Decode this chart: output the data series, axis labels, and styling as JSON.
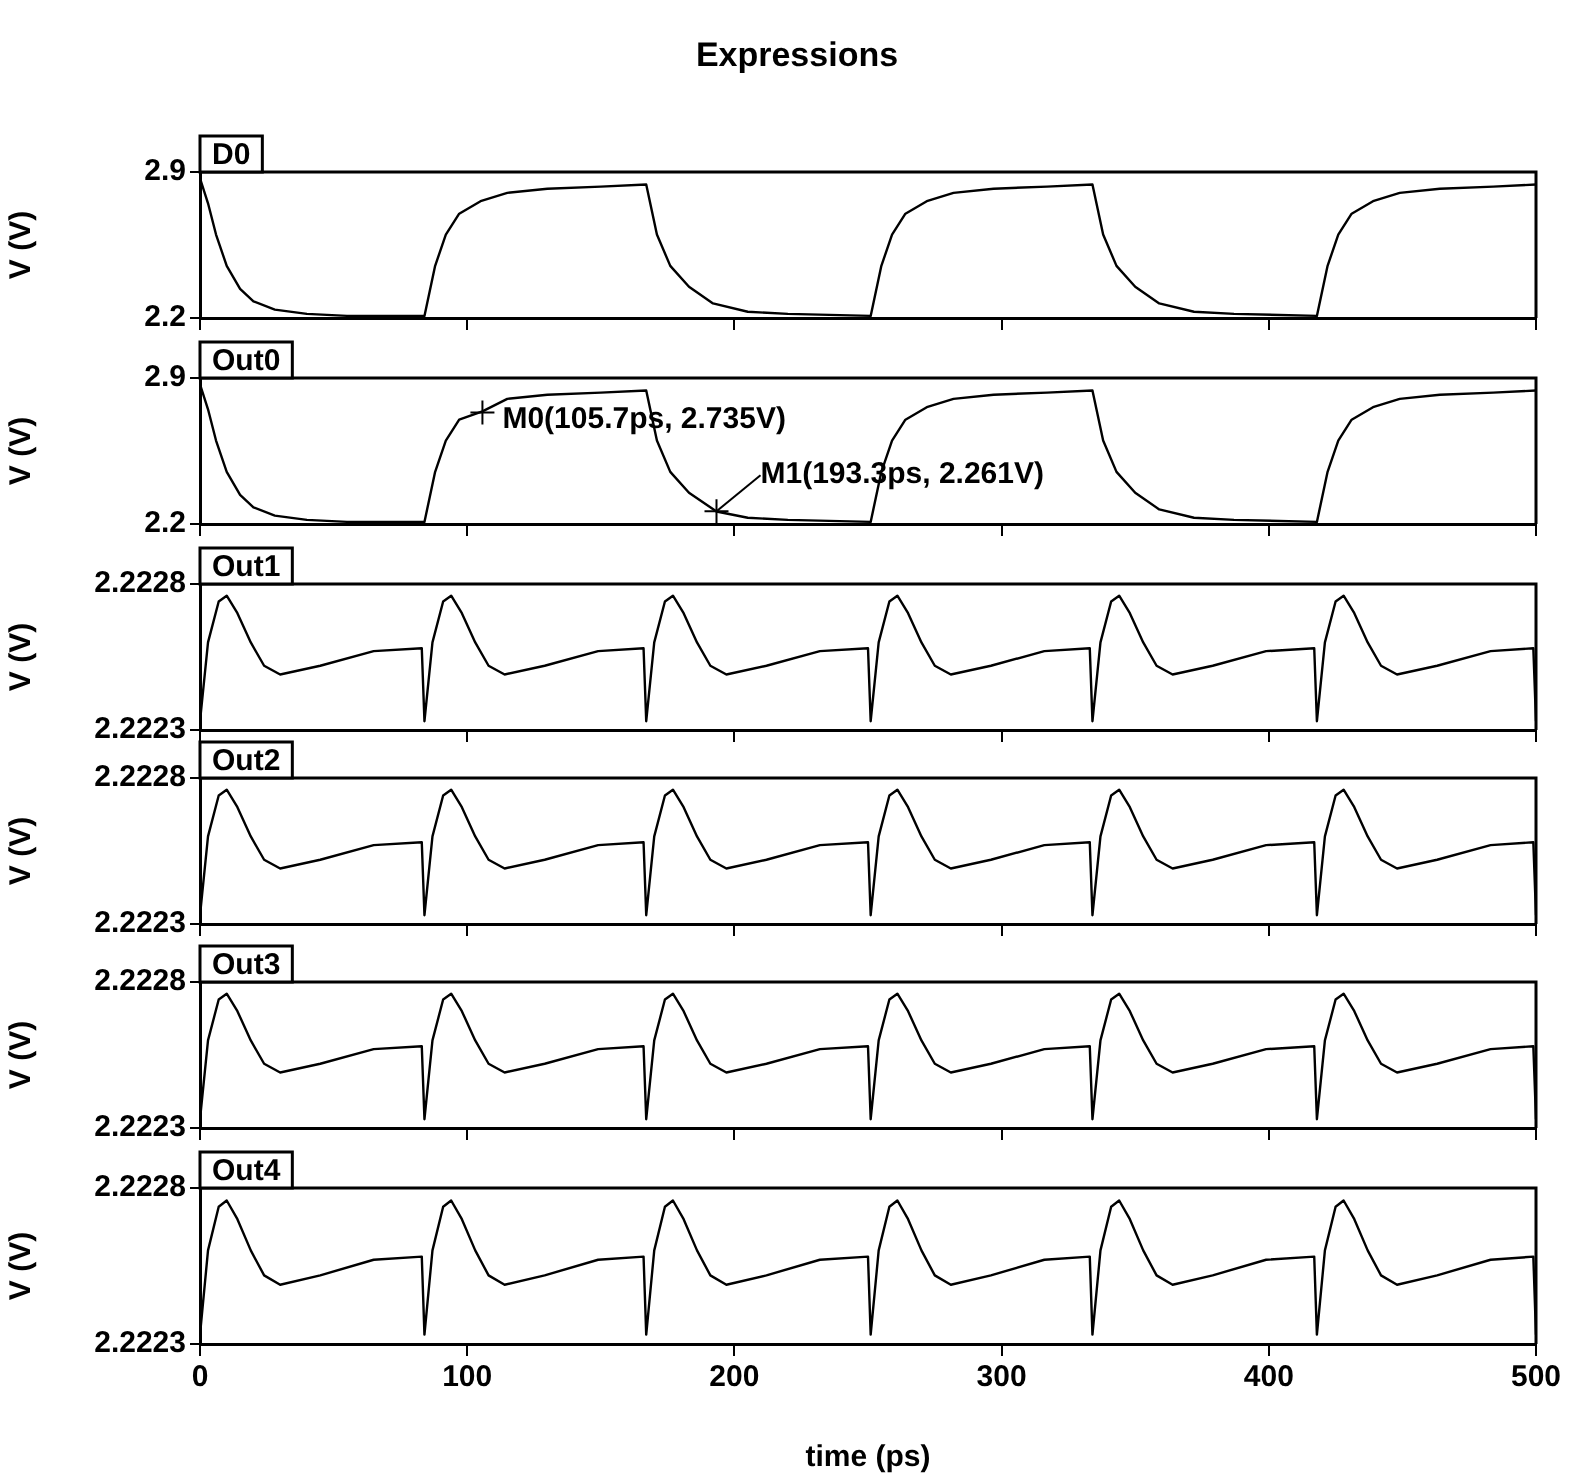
{
  "chart_data": [
    {
      "type": "line",
      "title": "Expressions",
      "ylabel": "V (V)",
      "legend": "top left",
      "tick_labels": "y",
      "xlim": [
        0,
        500
      ],
      "xticks": [
        0,
        100,
        200,
        300,
        400,
        500
      ],
      "ylim": [
        2.2,
        2.9
      ],
      "yticks": [
        2.2,
        2.9
      ],
      "x": [
        0,
        3,
        6,
        10,
        15,
        20,
        28,
        40,
        55,
        84,
        88,
        92,
        97,
        105,
        115,
        130,
        150,
        167,
        171,
        176,
        183,
        192,
        205,
        220,
        251,
        255,
        259,
        264,
        272,
        282,
        297,
        317,
        334,
        338,
        343,
        350,
        359,
        372,
        387,
        418,
        422,
        426,
        431,
        439,
        449,
        464,
        484,
        500
      ],
      "series": [
        {
          "name": "D0",
          "color": "#000000",
          "values": [
            2.87,
            2.75,
            2.6,
            2.45,
            2.34,
            2.28,
            2.24,
            2.22,
            2.21,
            2.21,
            2.45,
            2.6,
            2.7,
            2.76,
            2.8,
            2.82,
            2.83,
            2.84,
            2.6,
            2.45,
            2.35,
            2.27,
            2.23,
            2.22,
            2.21,
            2.45,
            2.6,
            2.7,
            2.76,
            2.8,
            2.82,
            2.83,
            2.84,
            2.6,
            2.45,
            2.35,
            2.27,
            2.23,
            2.22,
            2.21,
            2.45,
            2.6,
            2.7,
            2.76,
            2.8,
            2.82,
            2.83,
            2.84
          ]
        }
      ]
    },
    {
      "type": "line",
      "ylabel": "V (V)",
      "legend": "top left",
      "tick_labels": "y",
      "xlim": [
        0,
        500
      ],
      "xticks": [
        0,
        100,
        200,
        300,
        400,
        500
      ],
      "ylim": [
        2.2,
        2.9
      ],
      "yticks": [
        2.2,
        2.9
      ],
      "annotations": [
        {
          "text": "M0(105.7ps, 2.735V)",
          "x": 105.7,
          "y": 2.735
        },
        {
          "text": "M1(193.3ps, 2.261V)",
          "x": 193.3,
          "y": 2.261
        }
      ],
      "x": [
        0,
        3,
        6,
        10,
        15,
        20,
        28,
        40,
        55,
        84,
        88,
        92,
        97,
        105.7,
        115,
        130,
        150,
        167,
        171,
        176,
        183,
        193.3,
        205,
        220,
        251,
        255,
        259,
        264,
        272,
        282,
        297,
        317,
        334,
        338,
        343,
        350,
        359,
        372,
        387,
        418,
        422,
        426,
        431,
        439,
        449,
        464,
        484,
        500
      ],
      "series": [
        {
          "name": "Out0",
          "color": "#000000",
          "values": [
            2.87,
            2.75,
            2.6,
            2.45,
            2.34,
            2.28,
            2.24,
            2.22,
            2.21,
            2.21,
            2.45,
            2.6,
            2.7,
            2.74,
            2.8,
            2.82,
            2.83,
            2.84,
            2.6,
            2.45,
            2.35,
            2.26,
            2.23,
            2.22,
            2.21,
            2.45,
            2.6,
            2.7,
            2.76,
            2.8,
            2.82,
            2.83,
            2.84,
            2.6,
            2.45,
            2.35,
            2.27,
            2.23,
            2.22,
            2.21,
            2.45,
            2.6,
            2.7,
            2.76,
            2.8,
            2.82,
            2.83,
            2.84
          ]
        }
      ]
    },
    {
      "type": "line",
      "ylabel": "V (V)",
      "legend": "top left",
      "tick_labels": "y",
      "xlim": [
        0,
        500
      ],
      "xticks": [
        0,
        100,
        200,
        300,
        400,
        500
      ],
      "ylim": [
        2.2223,
        2.2228
      ],
      "yticks": [
        2.2223,
        2.2228
      ],
      "x": [
        0,
        3,
        7,
        10,
        14,
        19,
        24,
        30,
        45,
        65,
        83,
        84,
        87,
        91,
        94,
        98,
        103,
        108,
        114,
        129,
        149,
        166,
        167,
        170,
        174,
        177,
        181,
        186,
        191,
        197,
        212,
        232,
        250,
        251,
        254,
        258,
        261,
        265,
        270,
        275,
        281,
        296,
        316,
        333,
        334,
        337,
        341,
        344,
        348,
        353,
        358,
        364,
        379,
        399,
        417,
        418,
        421,
        425,
        428,
        432,
        437,
        442,
        448,
        463,
        483,
        499,
        500
      ],
      "series": [
        {
          "name": "Out1",
          "color": "#000000",
          "values": [
            2.22233,
            2.2226,
            2.22274,
            2.22276,
            2.2227,
            2.2226,
            2.22252,
            2.22249,
            2.22252,
            2.22257,
            2.22258,
            2.22233,
            2.2226,
            2.22274,
            2.22276,
            2.2227,
            2.2226,
            2.22252,
            2.22249,
            2.22252,
            2.22257,
            2.22258,
            2.22233,
            2.2226,
            2.22274,
            2.22276,
            2.2227,
            2.2226,
            2.22252,
            2.22249,
            2.22252,
            2.22257,
            2.22258,
            2.22233,
            2.2226,
            2.22274,
            2.22276,
            2.2227,
            2.2226,
            2.22252,
            2.22249,
            2.22252,
            2.22257,
            2.22258,
            2.22233,
            2.2226,
            2.22274,
            2.22276,
            2.2227,
            2.2226,
            2.22252,
            2.22249,
            2.22252,
            2.22257,
            2.22258,
            2.22233,
            2.2226,
            2.22274,
            2.22276,
            2.2227,
            2.2226,
            2.22252,
            2.22249,
            2.22252,
            2.22257,
            2.22258,
            2.22233
          ]
        }
      ]
    },
    {
      "type": "line",
      "ylabel": "V (V)",
      "legend": "top left",
      "tick_labels": "y",
      "xlim": [
        0,
        500
      ],
      "xticks": [
        0,
        100,
        200,
        300,
        400,
        500
      ],
      "ylim": [
        2.2223,
        2.2228
      ],
      "yticks": [
        2.2223,
        2.2228
      ],
      "x": [
        0,
        3,
        7,
        10,
        14,
        19,
        24,
        30,
        45,
        65,
        83,
        84,
        87,
        91,
        94,
        98,
        103,
        108,
        114,
        129,
        149,
        166,
        167,
        170,
        174,
        177,
        181,
        186,
        191,
        197,
        212,
        232,
        250,
        251,
        254,
        258,
        261,
        265,
        270,
        275,
        281,
        296,
        316,
        333,
        334,
        337,
        341,
        344,
        348,
        353,
        358,
        364,
        379,
        399,
        417,
        418,
        421,
        425,
        428,
        432,
        437,
        442,
        448,
        463,
        483,
        499,
        500
      ],
      "series": [
        {
          "name": "Out2",
          "color": "#000000",
          "values": [
            2.22233,
            2.2226,
            2.22274,
            2.22276,
            2.2227,
            2.2226,
            2.22252,
            2.22249,
            2.22252,
            2.22257,
            2.22258,
            2.22233,
            2.2226,
            2.22274,
            2.22276,
            2.2227,
            2.2226,
            2.22252,
            2.22249,
            2.22252,
            2.22257,
            2.22258,
            2.22233,
            2.2226,
            2.22274,
            2.22276,
            2.2227,
            2.2226,
            2.22252,
            2.22249,
            2.22252,
            2.22257,
            2.22258,
            2.22233,
            2.2226,
            2.22274,
            2.22276,
            2.2227,
            2.2226,
            2.22252,
            2.22249,
            2.22252,
            2.22257,
            2.22258,
            2.22233,
            2.2226,
            2.22274,
            2.22276,
            2.2227,
            2.2226,
            2.22252,
            2.22249,
            2.22252,
            2.22257,
            2.22258,
            2.22233,
            2.2226,
            2.22274,
            2.22276,
            2.2227,
            2.2226,
            2.22252,
            2.22249,
            2.22252,
            2.22257,
            2.22258,
            2.22233
          ]
        }
      ]
    },
    {
      "type": "line",
      "ylabel": "V (V)",
      "legend": "top left",
      "tick_labels": "y",
      "xlim": [
        0,
        500
      ],
      "xticks": [
        0,
        100,
        200,
        300,
        400,
        500
      ],
      "ylim": [
        2.2223,
        2.2228
      ],
      "yticks": [
        2.2223,
        2.2228
      ],
      "x": [
        0,
        3,
        7,
        10,
        14,
        19,
        24,
        30,
        45,
        65,
        83,
        84,
        87,
        91,
        94,
        98,
        103,
        108,
        114,
        129,
        149,
        166,
        167,
        170,
        174,
        177,
        181,
        186,
        191,
        197,
        212,
        232,
        250,
        251,
        254,
        258,
        261,
        265,
        270,
        275,
        281,
        296,
        316,
        333,
        334,
        337,
        341,
        344,
        348,
        353,
        358,
        364,
        379,
        399,
        417,
        418,
        421,
        425,
        428,
        432,
        437,
        442,
        448,
        463,
        483,
        499,
        500
      ],
      "series": [
        {
          "name": "Out3",
          "color": "#000000",
          "values": [
            2.22233,
            2.2226,
            2.22274,
            2.22276,
            2.2227,
            2.2226,
            2.22252,
            2.22249,
            2.22252,
            2.22257,
            2.22258,
            2.22233,
            2.2226,
            2.22274,
            2.22276,
            2.2227,
            2.2226,
            2.22252,
            2.22249,
            2.22252,
            2.22257,
            2.22258,
            2.22233,
            2.2226,
            2.22274,
            2.22276,
            2.2227,
            2.2226,
            2.22252,
            2.22249,
            2.22252,
            2.22257,
            2.22258,
            2.22233,
            2.2226,
            2.22274,
            2.22276,
            2.2227,
            2.2226,
            2.22252,
            2.22249,
            2.22252,
            2.22257,
            2.22258,
            2.22233,
            2.2226,
            2.22274,
            2.22276,
            2.2227,
            2.2226,
            2.22252,
            2.22249,
            2.22252,
            2.22257,
            2.22258,
            2.22233,
            2.2226,
            2.22274,
            2.22276,
            2.2227,
            2.2226,
            2.22252,
            2.22249,
            2.22252,
            2.22257,
            2.22258,
            2.22233
          ]
        }
      ]
    },
    {
      "type": "line",
      "xlabel": "time (ps)",
      "ylabel": "V (V)",
      "legend": "top left",
      "xlim": [
        0,
        500
      ],
      "xticks": [
        0,
        100,
        200,
        300,
        400,
        500
      ],
      "ylim": [
        2.2223,
        2.2228
      ],
      "yticks": [
        2.2223,
        2.2228
      ],
      "x": [
        0,
        3,
        7,
        10,
        14,
        19,
        24,
        30,
        45,
        65,
        83,
        84,
        87,
        91,
        94,
        98,
        103,
        108,
        114,
        129,
        149,
        166,
        167,
        170,
        174,
        177,
        181,
        186,
        191,
        197,
        212,
        232,
        250,
        251,
        254,
        258,
        261,
        265,
        270,
        275,
        281,
        296,
        316,
        333,
        334,
        337,
        341,
        344,
        348,
        353,
        358,
        364,
        379,
        399,
        417,
        418,
        421,
        425,
        428,
        432,
        437,
        442,
        448,
        463,
        483,
        499,
        500
      ],
      "series": [
        {
          "name": "Out4",
          "color": "#000000",
          "values": [
            2.22233,
            2.2226,
            2.22274,
            2.22276,
            2.2227,
            2.2226,
            2.22252,
            2.22249,
            2.22252,
            2.22257,
            2.22258,
            2.22233,
            2.2226,
            2.22274,
            2.22276,
            2.2227,
            2.2226,
            2.22252,
            2.22249,
            2.22252,
            2.22257,
            2.22258,
            2.22233,
            2.2226,
            2.22274,
            2.22276,
            2.2227,
            2.2226,
            2.22252,
            2.22249,
            2.22252,
            2.22257,
            2.22258,
            2.22233,
            2.2226,
            2.22274,
            2.22276,
            2.2227,
            2.2226,
            2.22252,
            2.22249,
            2.22252,
            2.22257,
            2.22258,
            2.22233,
            2.2226,
            2.22274,
            2.22276,
            2.2227,
            2.2226,
            2.22252,
            2.22249,
            2.22252,
            2.22257,
            2.22258,
            2.22233,
            2.2226,
            2.22274,
            2.22276,
            2.2227,
            2.2226,
            2.22252,
            2.22249,
            2.22252,
            2.22257,
            2.22258,
            2.22233
          ]
        }
      ]
    }
  ]
}
